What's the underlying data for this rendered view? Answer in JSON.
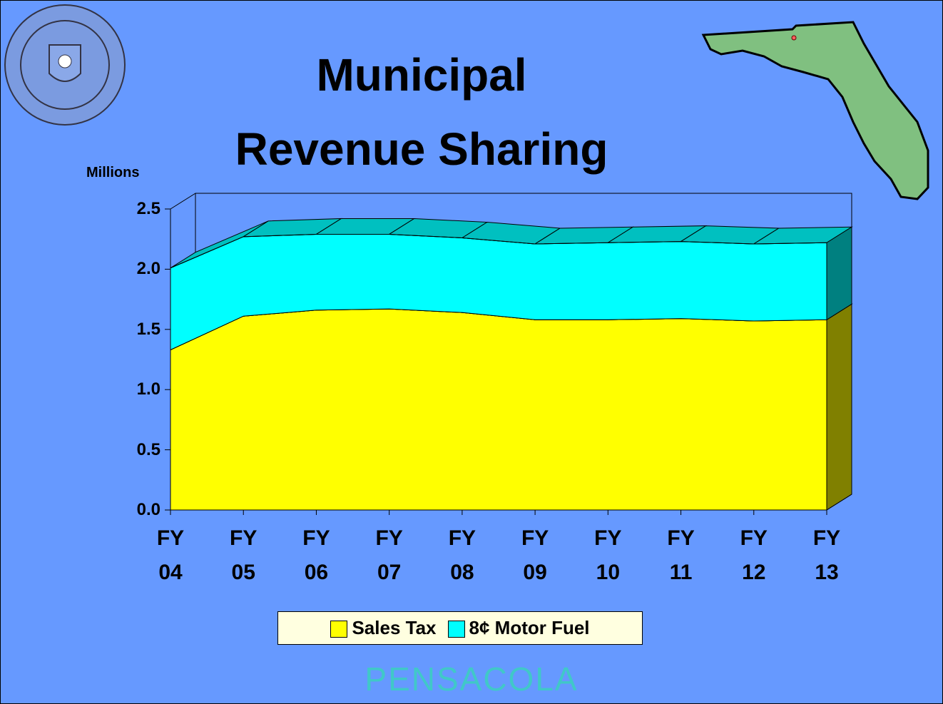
{
  "chart_data": {
    "type": "area",
    "title": "Municipal\nRevenue Sharing",
    "y_label": "Millions",
    "stacked": true,
    "three_d": true,
    "categories": [
      "FY\n04",
      "FY\n05",
      "FY\n06",
      "FY\n07",
      "FY\n08",
      "FY\n09",
      "FY\n10",
      "FY\n11",
      "FY\n12",
      "FY\n13"
    ],
    "series": [
      {
        "name": "Sales Tax",
        "color": "#ffff00",
        "values": [
          1.33,
          1.61,
          1.66,
          1.67,
          1.64,
          1.58,
          1.58,
          1.59,
          1.57,
          1.58
        ]
      },
      {
        "name": "8¢ Motor Fuel",
        "color": "#00ffff",
        "values": [
          0.68,
          0.66,
          0.63,
          0.62,
          0.62,
          0.63,
          0.64,
          0.64,
          0.64,
          0.64
        ]
      }
    ],
    "ylim": [
      0,
      2.5
    ],
    "yticks": [
      {
        "value": 0,
        "label": "0.0"
      },
      0.5,
      {
        "value": 1,
        "label": "1.0"
      },
      1.5,
      {
        "value": 2,
        "label": "2.0"
      },
      2.5
    ],
    "legend": "bottom",
    "logo": "PENSACOLA"
  }
}
